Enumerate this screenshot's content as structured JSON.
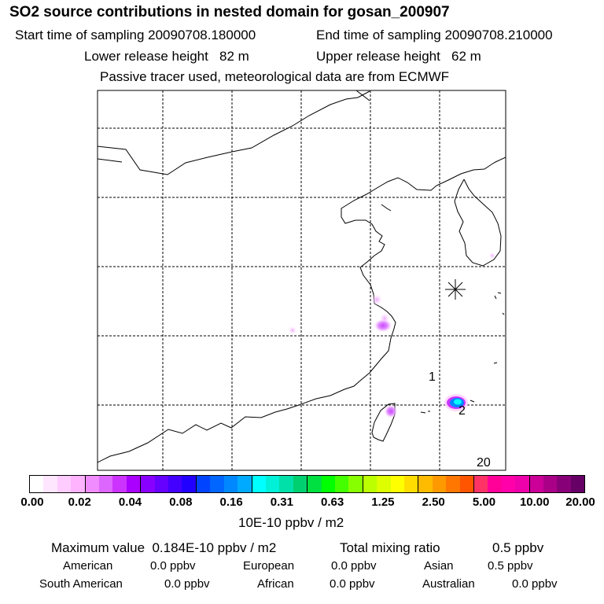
{
  "header": {
    "title": "SO2 source contributions in nested domain for gosan_200907",
    "start_time": "Start time of sampling 20090708.180000",
    "end_time": "End time of sampling 20090708.210000",
    "lower_height": "Lower release height   82 m",
    "upper_height": "Upper release height   62 m",
    "note": "Passive tracer used, meteorological data are from ECMWF"
  },
  "map": {
    "label_1": "1",
    "label_2": "2",
    "label_20": "20",
    "receptor_marker": "asterisk-icon"
  },
  "colorbar": {
    "colors": [
      "#ffffff",
      "#ffe6ff",
      "#ffccff",
      "#ffb3ff",
      "#f08cff",
      "#dd66ff",
      "#cc33ff",
      "#aa00ff",
      "#8800ff",
      "#6600ff",
      "#4400ff",
      "#2200ff",
      "#0044ff",
      "#0066ff",
      "#0088ff",
      "#00aaff",
      "#00ffff",
      "#00f0d8",
      "#00e0a8",
      "#00d070",
      "#00e040",
      "#00ff00",
      "#44ff00",
      "#88ff00",
      "#bbff00",
      "#ddff00",
      "#ffff00",
      "#ffdd00",
      "#ffbb00",
      "#ff9900",
      "#ff7700",
      "#ff5500",
      "#ff3366",
      "#ff0099",
      "#ff00aa",
      "#ee00aa",
      "#cc0099",
      "#aa0088",
      "#880077",
      "#660066"
    ],
    "ticks": [
      "0.00",
      "0.02",
      "0.04",
      "0.08",
      "0.16",
      "0.31",
      "0.63",
      "1.25",
      "2.50",
      "5.00",
      "10.00",
      "20.00"
    ],
    "unit": "10E-10 ppbv / m2"
  },
  "summary": {
    "maximum": "Maximum value  0.184E-10 ppbv / m2",
    "total_label": "Total mixing ratio",
    "total_value": "0.5 ppbv",
    "regions": [
      {
        "name": "American",
        "value": "0.0 ppbv"
      },
      {
        "name": "European",
        "value": "0.0 ppbv"
      },
      {
        "name": "Asian",
        "value": "0.5 ppbv"
      },
      {
        "name": "South American",
        "value": "0.0 ppbv"
      },
      {
        "name": "African",
        "value": "0.0 ppbv"
      },
      {
        "name": "Australian",
        "value": "0.0 ppbv"
      }
    ]
  }
}
